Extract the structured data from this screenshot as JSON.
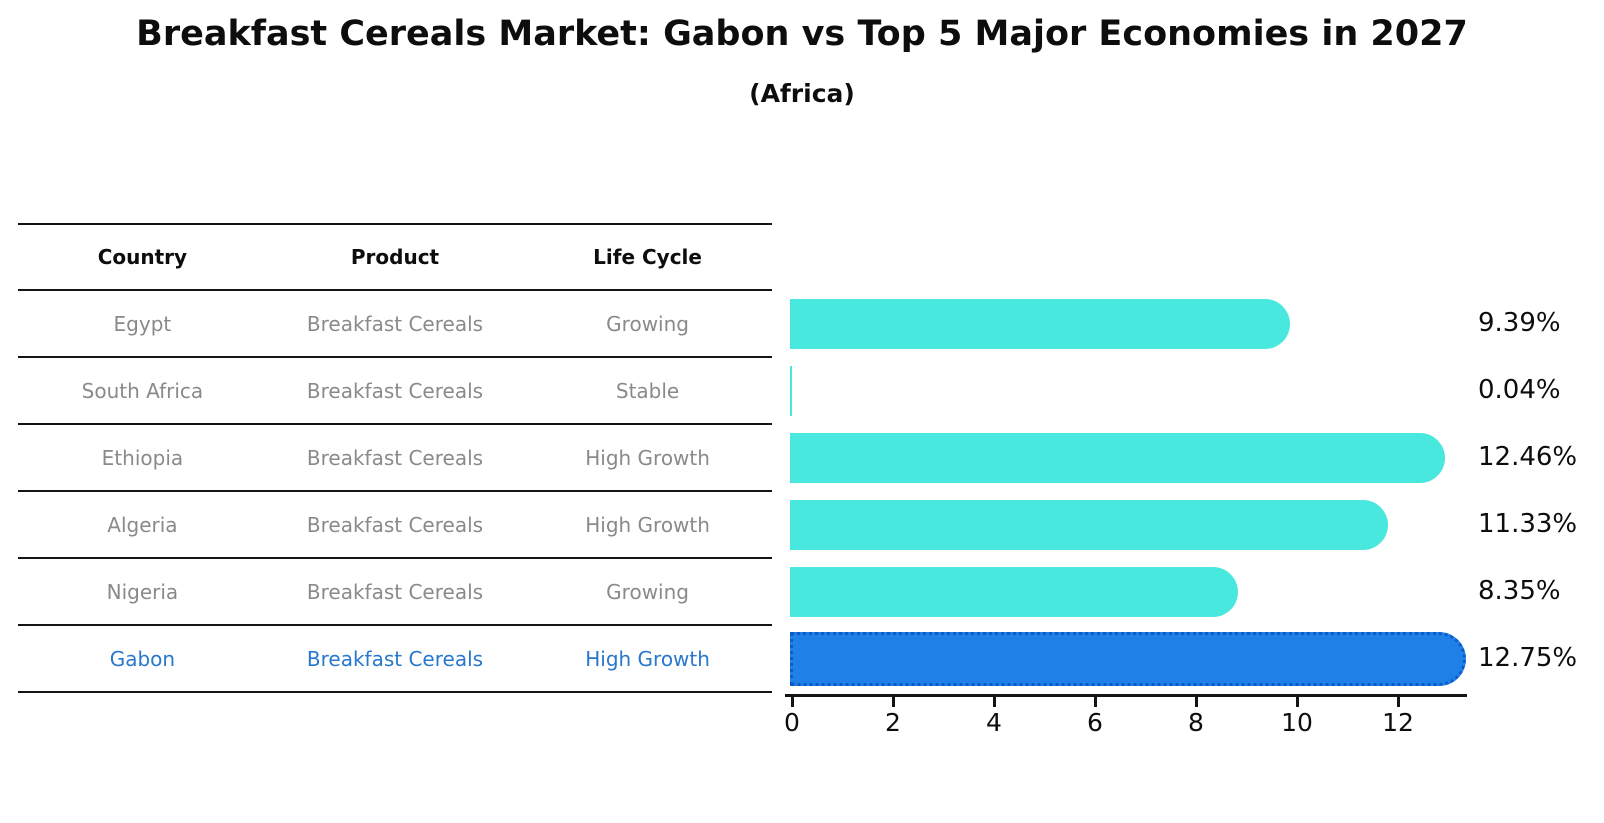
{
  "title": "Breakfast Cereals Market: Gabon vs Top 5 Major Economies in 2027",
  "subtitle": "(Africa)",
  "table": {
    "headers": [
      "Country",
      "Product",
      "Life Cycle"
    ],
    "rows": [
      {
        "country": "Egypt",
        "product": "Breakfast Cereals",
        "life_cycle": "Growing"
      },
      {
        "country": "South Africa",
        "product": "Breakfast Cereals",
        "life_cycle": "Stable"
      },
      {
        "country": "Ethiopia",
        "product": "Breakfast Cereals",
        "life_cycle": "High Growth"
      },
      {
        "country": "Algeria",
        "product": "Breakfast Cereals",
        "life_cycle": "High Growth"
      },
      {
        "country": "Nigeria",
        "product": "Breakfast Cereals",
        "life_cycle": "Growing"
      },
      {
        "country": "Gabon",
        "product": "Breakfast Cereals",
        "life_cycle": "High Growth"
      }
    ],
    "highlight_row": "Gabon"
  },
  "chart_data": {
    "type": "bar",
    "orientation": "horizontal",
    "title": "Breakfast Cereals Market: Gabon vs Top 5 Major Economies in 2027",
    "subtitle": "(Africa)",
    "categories": [
      "Egypt",
      "South Africa",
      "Ethiopia",
      "Algeria",
      "Nigeria",
      "Gabon"
    ],
    "values": [
      9.39,
      0.04,
      12.46,
      11.33,
      8.35,
      12.75
    ],
    "value_labels": [
      "9.39%",
      "0.04%",
      "12.46%",
      "11.33%",
      "8.35%",
      "12.75%"
    ],
    "xticks": [
      0,
      2,
      4,
      6,
      8,
      10,
      12
    ],
    "xlim": [
      0,
      13.4
    ],
    "grid": false,
    "legend": null,
    "bar_color": "#48E8DF",
    "highlight_index": 5,
    "highlight_bar_color": "#1F80E8",
    "highlight_border_color": "#0C5CC6"
  },
  "colors": {
    "text_dark": "#0d0d0d",
    "table_text": "#8a8a8a",
    "highlight_text": "#2878CC",
    "line": "#141414"
  }
}
